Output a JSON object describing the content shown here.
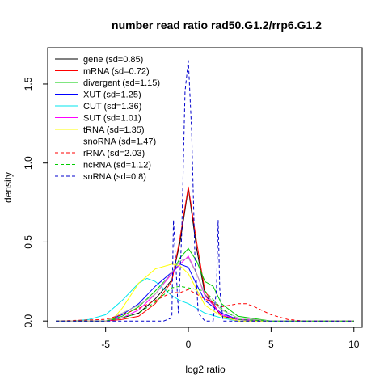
{
  "chart_data": {
    "type": "line",
    "title": "number read ratio rad50.G1.2/rrp6.G1.2",
    "xlabel": "log2 ratio",
    "ylabel": "density",
    "xlim": [
      -8.5,
      10.5
    ],
    "ylim": [
      -0.04,
      1.73
    ],
    "x_ticks": [
      -5,
      0,
      5,
      10
    ],
    "y_ticks": [
      0.0,
      0.5,
      1.0,
      1.5
    ],
    "x_tick_labels": [
      "-5",
      "0",
      "5",
      "10"
    ],
    "y_tick_labels": [
      "0.0",
      "0.5",
      "1.0",
      "1.5"
    ],
    "grid": false,
    "legend_position": "top-left",
    "series": [
      {
        "name": "gene (sd=0.85)",
        "color": "#000000",
        "dash": "solid",
        "x": [
          -8,
          -5,
          -4,
          -3,
          -2,
          -1,
          -0.5,
          0,
          0.5,
          1,
          2,
          3,
          5,
          10
        ],
        "y": [
          0,
          0,
          0.02,
          0.05,
          0.14,
          0.26,
          0.5,
          0.84,
          0.46,
          0.17,
          0.03,
          0.01,
          0,
          0
        ]
      },
      {
        "name": "mRNA (sd=0.72)",
        "color": "#ff0000",
        "dash": "solid",
        "x": [
          -8,
          -5,
          -4,
          -3,
          -2,
          -1,
          -0.5,
          0,
          0.5,
          1,
          2,
          3,
          5,
          10
        ],
        "y": [
          0,
          0,
          0.01,
          0.03,
          0.11,
          0.25,
          0.53,
          0.85,
          0.5,
          0.19,
          0.03,
          0,
          0,
          0
        ]
      },
      {
        "name": "divergent (sd=1.15)",
        "color": "#00cc00",
        "dash": "solid",
        "x": [
          -8,
          -5,
          -4,
          -3,
          -2,
          -1,
          -0.5,
          0,
          0.5,
          1,
          1.5,
          2,
          3,
          5,
          10
        ],
        "y": [
          0,
          0,
          0.03,
          0.09,
          0.19,
          0.3,
          0.4,
          0.46,
          0.38,
          0.25,
          0.22,
          0.11,
          0.03,
          0,
          0
        ]
      },
      {
        "name": "XUT (sd=1.25)",
        "color": "#0000ff",
        "dash": "solid",
        "x": [
          -8,
          -5,
          -4,
          -3,
          -2,
          -1,
          -0.5,
          0,
          0.5,
          1,
          2,
          3,
          5,
          10
        ],
        "y": [
          0,
          0,
          0.04,
          0.11,
          0.22,
          0.31,
          0.36,
          0.34,
          0.23,
          0.13,
          0.05,
          0.01,
          0,
          0
        ]
      },
      {
        "name": "CUT (sd=1.36)",
        "color": "#00e5ee",
        "dash": "solid",
        "x": [
          -8,
          -7,
          -6,
          -5,
          -4,
          -3,
          -2.5,
          -2,
          -1,
          -0.5,
          0,
          1,
          2,
          3,
          5,
          10
        ],
        "y": [
          0,
          0,
          0.01,
          0.04,
          0.13,
          0.24,
          0.27,
          0.25,
          0.16,
          0.13,
          0.11,
          0.05,
          0.02,
          0,
          0,
          0
        ]
      },
      {
        "name": "SUT (sd=1.01)",
        "color": "#ff00ff",
        "dash": "solid",
        "x": [
          -8,
          -5,
          -4,
          -3,
          -2,
          -1,
          -0.5,
          0,
          0.5,
          1,
          2,
          3,
          5,
          10
        ],
        "y": [
          0,
          0,
          0.02,
          0.07,
          0.17,
          0.3,
          0.36,
          0.41,
          0.3,
          0.16,
          0.04,
          0.01,
          0,
          0
        ]
      },
      {
        "name": "tRNA (sd=1.35)",
        "color": "#ffff00",
        "dash": "solid",
        "x": [
          -8,
          -5,
          -4.5,
          -4,
          -3,
          -2,
          -1,
          -0.5,
          0,
          0.5,
          1,
          2,
          3,
          5,
          10
        ],
        "y": [
          0,
          0,
          0.02,
          0.08,
          0.24,
          0.33,
          0.36,
          0.35,
          0.3,
          0.2,
          0.1,
          0.03,
          0,
          0,
          0
        ]
      },
      {
        "name": "snoRNA (sd=1.47)",
        "color": "#b0b0b0",
        "dash": "solid",
        "x": [
          -8,
          -5,
          -4,
          -3,
          -2,
          -1,
          -0.5,
          0,
          0.5,
          1,
          2,
          3,
          5,
          10
        ],
        "y": [
          0,
          0,
          0.05,
          0.1,
          0.17,
          0.31,
          0.38,
          0.4,
          0.3,
          0.17,
          0.07,
          0.02,
          0,
          0
        ]
      },
      {
        "name": "rRNA (sd=2.03)",
        "color": "#ff0000",
        "dash": "dashed",
        "x": [
          -8,
          -5,
          -4,
          -3,
          -2,
          -1,
          -0.5,
          0,
          1,
          2,
          3,
          3.5,
          4,
          5,
          6,
          7,
          10
        ],
        "y": [
          0,
          0.01,
          0.04,
          0.08,
          0.13,
          0.18,
          0.18,
          0.2,
          0.14,
          0.09,
          0.11,
          0.11,
          0.09,
          0.04,
          0.01,
          0,
          0
        ]
      },
      {
        "name": "ncRNA (sd=1.12)",
        "color": "#00cc00",
        "dash": "dashed",
        "x": [
          -8,
          -5,
          -4,
          -3,
          -2,
          -1,
          -0.5,
          0,
          0.5,
          1,
          2,
          3,
          5,
          10
        ],
        "y": [
          0,
          0,
          0.02,
          0.05,
          0.12,
          0.21,
          0.22,
          0.21,
          0.2,
          0.19,
          0.08,
          0.01,
          0,
          0
        ]
      },
      {
        "name": "snRNA (sd=0.8)",
        "color": "#0000cc",
        "dash": "dashed",
        "x": [
          -8,
          -1.5,
          -1,
          -0.9,
          -0.6,
          -0.4,
          -0.2,
          0,
          0.2,
          0.4,
          0.6,
          1,
          1.5,
          1.7,
          1.8,
          1.9,
          2.1,
          10
        ],
        "y": [
          0,
          0,
          0.02,
          0.64,
          0.05,
          0.55,
          1.45,
          1.65,
          1.2,
          0.4,
          0.05,
          0,
          0,
          0.2,
          0.64,
          0.2,
          0,
          0
        ]
      }
    ]
  }
}
